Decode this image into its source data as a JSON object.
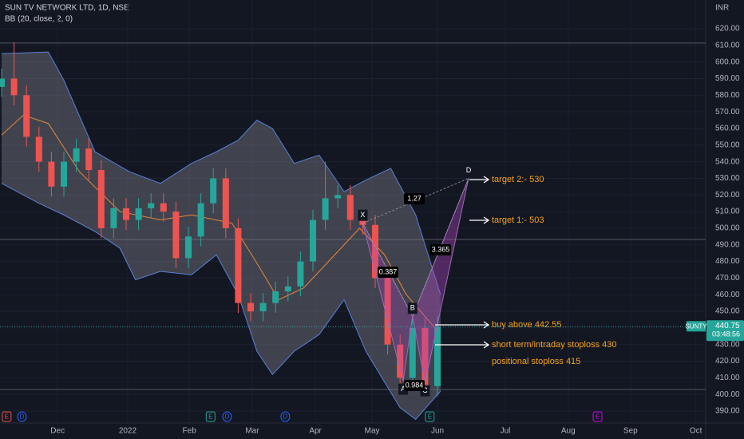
{
  "chart_data": {
    "type": "candlestick",
    "title": "SUN TV NETWORK LTD, 1D, NSE",
    "subtitle": "BB (20, close, 2, 0)",
    "currency": "INR",
    "symbol": "SUNTY",
    "last_price": 440.75,
    "countdown": "03:48:56",
    "xlim": [
      0,
      226
    ],
    "ylim": [
      385,
      625
    ],
    "xticks": [
      {
        "value": 18,
        "label": "Dec"
      },
      {
        "value": 40.5,
        "label": "2022"
      },
      {
        "value": 60.3,
        "label": "Feb"
      },
      {
        "value": 80.5,
        "label": "Mar"
      },
      {
        "value": 100.8,
        "label": "Apr"
      },
      {
        "value": 119,
        "label": "May"
      },
      {
        "value": 140,
        "label": "Jun"
      },
      {
        "value": 161.8,
        "label": "Jul"
      },
      {
        "value": 182,
        "label": "Aug"
      },
      {
        "value": 202,
        "label": "Sep"
      },
      {
        "value": 223,
        "label": "Oct"
      }
    ],
    "yticks": [
      {
        "value": 390,
        "label": "390.00"
      },
      {
        "value": 400,
        "label": "400.00"
      },
      {
        "value": 410,
        "label": "410.00"
      },
      {
        "value": 420,
        "label": "420.00"
      },
      {
        "value": 430,
        "label": "430.00"
      },
      {
        "value": 440,
        "label": "440.00"
      },
      {
        "value": 450,
        "label": "450.00"
      },
      {
        "value": 460,
        "label": "460.00"
      },
      {
        "value": 470,
        "label": "470.00"
      },
      {
        "value": 480,
        "label": "480.00"
      },
      {
        "value": 490,
        "label": "490.00"
      },
      {
        "value": 500,
        "label": "500.00"
      },
      {
        "value": 510,
        "label": "510.00"
      },
      {
        "value": 520,
        "label": "520.00"
      },
      {
        "value": 530,
        "label": "530.00"
      },
      {
        "value": 540,
        "label": "540.00"
      },
      {
        "value": 550,
        "label": "550.00"
      },
      {
        "value": 560,
        "label": "560.00"
      },
      {
        "value": 570,
        "label": "570.00"
      },
      {
        "value": 580,
        "label": "580.00"
      },
      {
        "value": 590,
        "label": "590.00"
      },
      {
        "value": 600,
        "label": "600.00"
      },
      {
        "value": 610,
        "label": "610.00"
      },
      {
        "value": 620,
        "label": "620.00"
      }
    ],
    "grid": true,
    "up_color": "#26a69a",
    "down_color": "#ef5350",
    "x": [
      0,
      4,
      8,
      12,
      16,
      20,
      24,
      28,
      32,
      36,
      40,
      44,
      48,
      52,
      56,
      60,
      64,
      68,
      72,
      76,
      80,
      84,
      88,
      92,
      96,
      100,
      104,
      108,
      112,
      116,
      120,
      124,
      128,
      132,
      136,
      140
    ],
    "open": [
      585,
      590,
      580,
      555,
      540,
      525,
      540,
      548,
      535,
      500,
      512,
      505,
      512,
      515,
      510,
      482,
      495,
      515,
      530,
      500,
      455,
      450,
      455,
      462,
      465,
      480,
      505,
      518,
      520,
      505,
      502,
      470,
      430,
      410,
      440,
      405
    ],
    "high": [
      596,
      612,
      586,
      561,
      546,
      546,
      554,
      554,
      541,
      518,
      518,
      518,
      521,
      521,
      516,
      501,
      521,
      536,
      536,
      506,
      461,
      461,
      468,
      471,
      486,
      511,
      540,
      526,
      526,
      511,
      508,
      476,
      436,
      446,
      446,
      447
    ],
    "low": [
      579,
      574,
      549,
      534,
      519,
      519,
      534,
      529,
      494,
      494,
      499,
      499,
      506,
      504,
      476,
      476,
      489,
      509,
      494,
      449,
      444,
      444,
      449,
      456,
      459,
      474,
      499,
      512,
      499,
      496,
      464,
      424,
      404,
      404,
      399,
      399
    ],
    "close": [
      590,
      580,
      555,
      540,
      525,
      540,
      548,
      535,
      500,
      512,
      505,
      512,
      515,
      510,
      482,
      495,
      515,
      530,
      500,
      455,
      450,
      455,
      462,
      465,
      480,
      505,
      518,
      520,
      505,
      502,
      470,
      430,
      410,
      440,
      405,
      440.75
    ],
    "bands": [
      {
        "name": "upper",
        "color": "#5b7fd6",
        "x": [
          0,
          15,
          20,
          30,
          41,
          51,
          61,
          69,
          76,
          82,
          87,
          94,
          102,
          110,
          117,
          125,
          133,
          141
        ],
        "values": [
          605,
          606,
          589,
          546,
          534,
          527,
          539,
          546,
          553,
          565,
          560,
          539,
          544,
          522,
          529,
          536,
          508,
          460
        ]
      },
      {
        "name": "lower",
        "color": "#5b7fd6",
        "x": [
          0,
          12,
          20,
          30,
          38,
          43,
          51,
          61,
          69,
          76,
          82,
          87,
          94,
          102,
          110,
          117,
          128,
          133,
          141
        ],
        "values": [
          527,
          515,
          508,
          498,
          488,
          469,
          474,
          472,
          484,
          460,
          426,
          412,
          426,
          436,
          457,
          426,
          392,
          385,
          402
        ]
      },
      {
        "name": "basis",
        "color": "#e8873a",
        "x": [
          0,
          7,
          15,
          25,
          38,
          51,
          61,
          74,
          82,
          89,
          97,
          107,
          115,
          123,
          130,
          141
        ],
        "values": [
          556,
          568,
          563,
          534,
          510,
          505,
          508,
          503,
          479,
          457,
          464,
          484,
          500,
          484,
          460,
          436
        ]
      }
    ],
    "levels": [
      611.4,
      493.2,
      403
    ],
    "pattern": {
      "points": [
        {
          "label": "X",
          "x": 116,
          "y": 503
        },
        {
          "label": "A",
          "x": 129,
          "y": 408
        },
        {
          "label": "B",
          "x": 132,
          "y": 447
        },
        {
          "label": "C",
          "x": 136,
          "y": 407
        },
        {
          "label": "D",
          "x": 150,
          "y": 530
        }
      ],
      "ratios": [
        "1.27",
        "0.387",
        "3.365",
        "0.984"
      ]
    },
    "annotations": [
      "target 2:- 530",
      "target 1:- 503",
      "buy above 442.55",
      "short term/intraday stoploss 430",
      "positional stoploss 415"
    ],
    "events": [
      {
        "label": "E",
        "x": 1.5,
        "color": "#ef5350"
      },
      {
        "label": "D",
        "x": 6.4,
        "color": "#2962ff"
      },
      {
        "label": "E",
        "x": 67,
        "color": "#26a69a"
      },
      {
        "label": "D",
        "x": 72.3,
        "color": "#2962ff"
      },
      {
        "label": "D",
        "x": 91,
        "color": "#2962ff"
      },
      {
        "label": "E",
        "x": 137.4,
        "color": "#26a69a"
      },
      {
        "label": "E",
        "x": 191.3,
        "color": "#d500f9"
      }
    ]
  }
}
